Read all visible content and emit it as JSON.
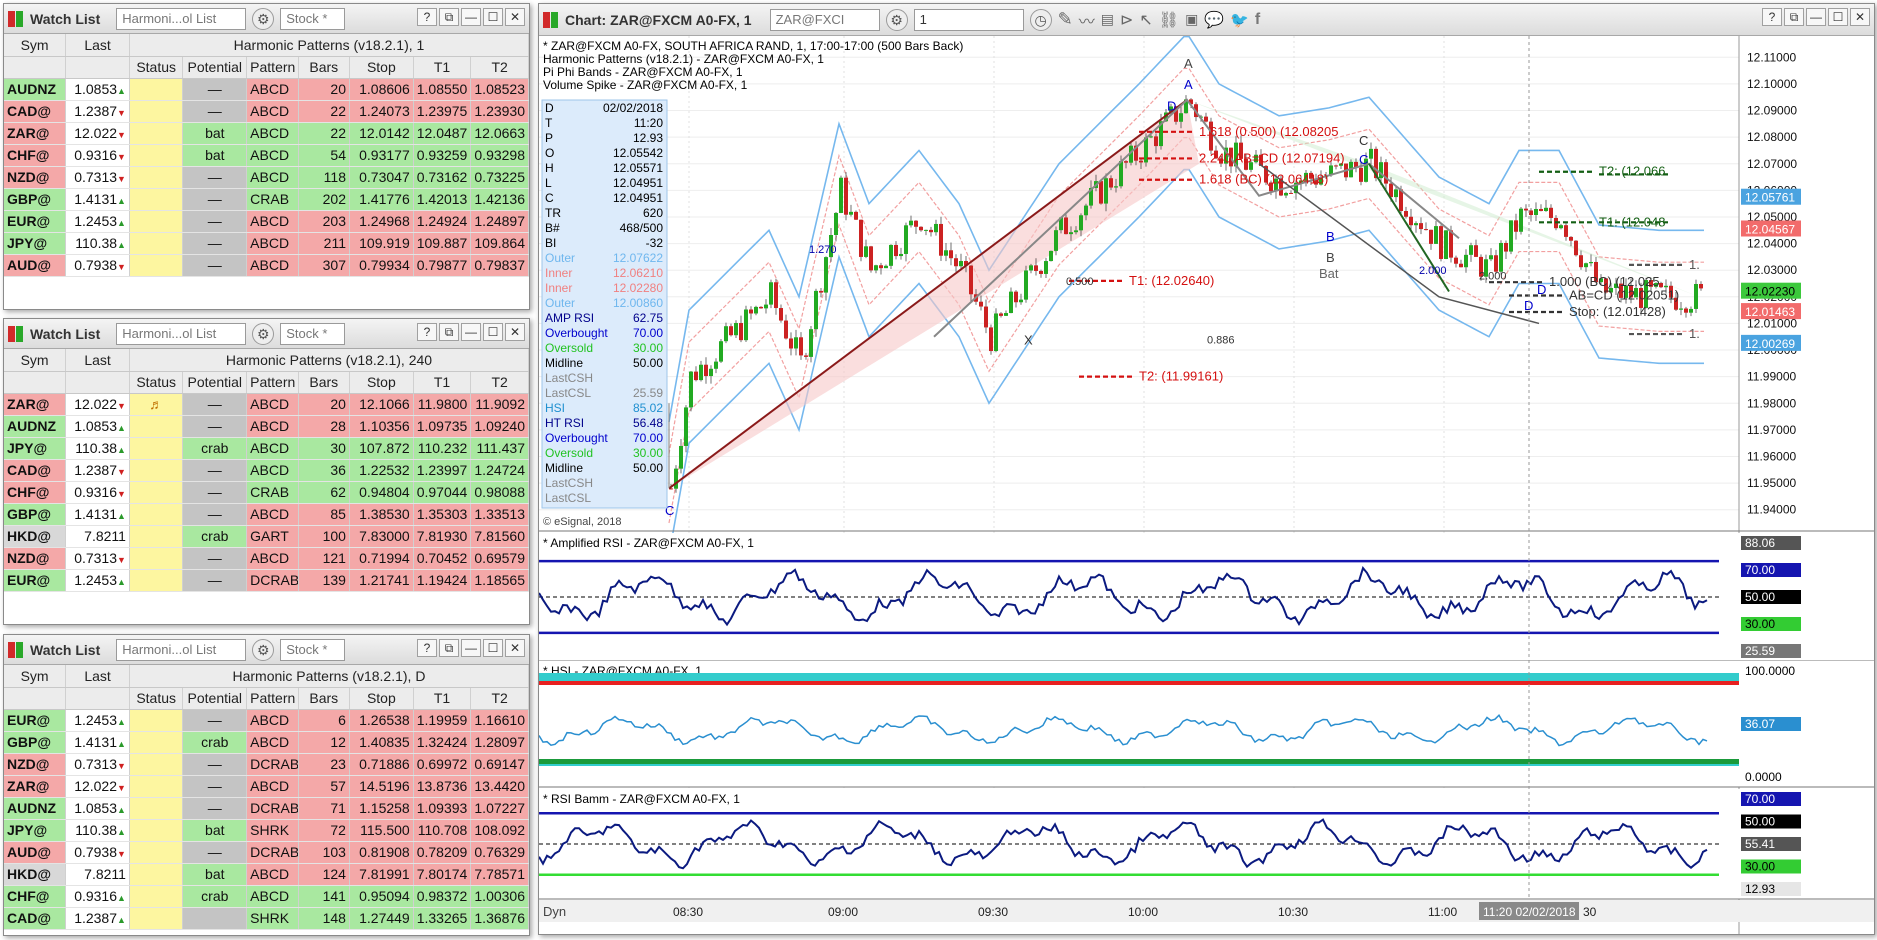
{
  "watchlists": [
    {
      "title": "Watch List",
      "layout_combo": "Harmoni...ol List",
      "symbol_input": "Stock *",
      "study_header": "Harmonic Patterns (v18.2.1), 1",
      "headers": {
        "sym": "Sym",
        "last": "Last",
        "status": "Status",
        "potential": "Potential",
        "pattern": "Pattern",
        "bars": "Bars",
        "stop": "Stop",
        "t1": "T1",
        "t2": "T2"
      },
      "rows": [
        {
          "sym": "AUDNZ",
          "last": "1.0853",
          "dir": "up",
          "status": "",
          "potential": "—",
          "pattern": "ABCD",
          "bars": "20",
          "stop": "1.08606",
          "t1": "1.08550",
          "t2": "1.08523",
          "type": "bear"
        },
        {
          "sym": "CAD@",
          "last": "1.2387",
          "dir": "dn",
          "status": "",
          "potential": "—",
          "pattern": "ABCD",
          "bars": "22",
          "stop": "1.24073",
          "t1": "1.23975",
          "t2": "1.23930",
          "type": "bear"
        },
        {
          "sym": "ZAR@",
          "last": "12.022",
          "dir": "dn",
          "status": "",
          "potential": "bat",
          "pattern": "ABCD",
          "bars": "22",
          "stop": "12.0142",
          "t1": "12.0487",
          "t2": "12.0663",
          "type": "bull"
        },
        {
          "sym": "CHF@",
          "last": "0.9316",
          "dir": "dn",
          "status": "",
          "potential": "bat",
          "pattern": "ABCD",
          "bars": "54",
          "stop": "0.93177",
          "t1": "0.93259",
          "t2": "0.93298",
          "type": "bull"
        },
        {
          "sym": "NZD@",
          "last": "0.7313",
          "dir": "dn",
          "status": "",
          "potential": "—",
          "pattern": "ABCD",
          "bars": "118",
          "stop": "0.73047",
          "t1": "0.73162",
          "t2": "0.73225",
          "type": "bull"
        },
        {
          "sym": "GBP@",
          "last": "1.4131",
          "dir": "up",
          "status": "",
          "potential": "—",
          "pattern": "CRAB",
          "bars": "202",
          "stop": "1.41776",
          "t1": "1.42013",
          "t2": "1.42136",
          "type": "bull"
        },
        {
          "sym": "EUR@",
          "last": "1.2453",
          "dir": "up",
          "status": "",
          "potential": "—",
          "pattern": "ABCD",
          "bars": "203",
          "stop": "1.24968",
          "t1": "1.24924",
          "t2": "1.24897",
          "type": "bear"
        },
        {
          "sym": "JPY@",
          "last": "110.38",
          "dir": "up",
          "status": "",
          "potential": "—",
          "pattern": "ABCD",
          "bars": "211",
          "stop": "109.919",
          "t1": "109.887",
          "t2": "109.864",
          "type": "bear"
        },
        {
          "sym": "AUD@",
          "last": "0.7938",
          "dir": "dn",
          "status": "",
          "potential": "—",
          "pattern": "ABCD",
          "bars": "307",
          "stop": "0.79934",
          "t1": "0.79877",
          "t2": "0.79837",
          "type": "bear"
        }
      ]
    },
    {
      "title": "Watch List",
      "layout_combo": "Harmoni...ol List",
      "symbol_input": "Stock *",
      "study_header": "Harmonic Patterns (v18.2.1), 240",
      "headers": {
        "sym": "Sym",
        "last": "Last",
        "status": "Status",
        "potential": "Potential",
        "pattern": "Pattern",
        "bars": "Bars",
        "stop": "Stop",
        "t1": "T1",
        "t2": "T2"
      },
      "rows": [
        {
          "sym": "ZAR@",
          "last": "12.022",
          "dir": "dn",
          "status": "♬",
          "potential": "—",
          "pattern": "ABCD",
          "bars": "20",
          "stop": "12.1066",
          "t1": "11.9800",
          "t2": "11.9092",
          "type": "bear"
        },
        {
          "sym": "AUDNZ",
          "last": "1.0853",
          "dir": "up",
          "status": "",
          "potential": "—",
          "pattern": "ABCD",
          "bars": "28",
          "stop": "1.10356",
          "t1": "1.09735",
          "t2": "1.09240",
          "type": "bear"
        },
        {
          "sym": "JPY@",
          "last": "110.38",
          "dir": "up",
          "status": "",
          "potential": "crab",
          "pattern": "ABCD",
          "bars": "30",
          "stop": "107.872",
          "t1": "110.232",
          "t2": "111.437",
          "type": "bull"
        },
        {
          "sym": "CAD@",
          "last": "1.2387",
          "dir": "dn",
          "status": "",
          "potential": "—",
          "pattern": "ABCD",
          "bars": "36",
          "stop": "1.22532",
          "t1": "1.23997",
          "t2": "1.24724",
          "type": "bull"
        },
        {
          "sym": "CHF@",
          "last": "0.9316",
          "dir": "dn",
          "status": "",
          "potential": "—",
          "pattern": "CRAB",
          "bars": "62",
          "stop": "0.94804",
          "t1": "0.97044",
          "t2": "0.98088",
          "type": "bull"
        },
        {
          "sym": "GBP@",
          "last": "1.4131",
          "dir": "up",
          "status": "",
          "potential": "—",
          "pattern": "ABCD",
          "bars": "85",
          "stop": "1.38530",
          "t1": "1.35303",
          "t2": "1.33513",
          "type": "bear"
        },
        {
          "sym": "HKD@",
          "last": "7.8211",
          "dir": "",
          "status": "",
          "potential": "crab",
          "pattern": "GART",
          "bars": "100",
          "stop": "7.83000",
          "t1": "7.81930",
          "t2": "7.81560",
          "type": "bear"
        },
        {
          "sym": "NZD@",
          "last": "0.7313",
          "dir": "dn",
          "status": "",
          "potential": "—",
          "pattern": "ABCD",
          "bars": "121",
          "stop": "0.71994",
          "t1": "0.70452",
          "t2": "0.69579",
          "type": "bear"
        },
        {
          "sym": "EUR@",
          "last": "1.2453",
          "dir": "up",
          "status": "",
          "potential": "—",
          "pattern": "DCRAB",
          "bars": "139",
          "stop": "1.21741",
          "t1": "1.19424",
          "t2": "1.18565",
          "type": "bear"
        }
      ]
    },
    {
      "title": "Watch List",
      "layout_combo": "Harmoni...ol List",
      "symbol_input": "Stock *",
      "study_header": "Harmonic Patterns (v18.2.1), D",
      "headers": {
        "sym": "Sym",
        "last": "Last",
        "status": "Status",
        "potential": "Potential",
        "pattern": "Pattern",
        "bars": "Bars",
        "stop": "Stop",
        "t1": "T1",
        "t2": "T2"
      },
      "rows": [
        {
          "sym": "EUR@",
          "last": "1.2453",
          "dir": "up",
          "status": "",
          "potential": "—",
          "pattern": "ABCD",
          "bars": "6",
          "stop": "1.26538",
          "t1": "1.19959",
          "t2": "1.16610",
          "type": "bear"
        },
        {
          "sym": "GBP@",
          "last": "1.4131",
          "dir": "up",
          "status": "",
          "potential": "crab",
          "pattern": "ABCD",
          "bars": "12",
          "stop": "1.40835",
          "t1": "1.32424",
          "t2": "1.28097",
          "type": "bear"
        },
        {
          "sym": "NZD@",
          "last": "0.7313",
          "dir": "dn",
          "status": "",
          "potential": "—",
          "pattern": "DCRAB",
          "bars": "23",
          "stop": "0.71886",
          "t1": "0.69972",
          "t2": "0.69147",
          "type": "bear"
        },
        {
          "sym": "ZAR@",
          "last": "12.022",
          "dir": "dn",
          "status": "",
          "potential": "—",
          "pattern": "ABCD",
          "bars": "57",
          "stop": "14.5196",
          "t1": "13.8736",
          "t2": "13.4420",
          "type": "bear"
        },
        {
          "sym": "AUDNZ",
          "last": "1.0853",
          "dir": "up",
          "status": "",
          "potential": "—",
          "pattern": "DCRAB",
          "bars": "71",
          "stop": "1.15258",
          "t1": "1.09393",
          "t2": "1.07227",
          "type": "bear"
        },
        {
          "sym": "JPY@",
          "last": "110.38",
          "dir": "up",
          "status": "",
          "potential": "bat",
          "pattern": "SHRK",
          "bars": "72",
          "stop": "115.500",
          "t1": "110.708",
          "t2": "108.092",
          "type": "bear"
        },
        {
          "sym": "AUD@",
          "last": "0.7938",
          "dir": "dn",
          "status": "",
          "potential": "—",
          "pattern": "DCRAB",
          "bars": "103",
          "stop": "0.81908",
          "t1": "0.78209",
          "t2": "0.76329",
          "type": "bear"
        },
        {
          "sym": "HKD@",
          "last": "7.8211",
          "dir": "",
          "status": "",
          "potential": "bat",
          "pattern": "ABCD",
          "bars": "124",
          "stop": "7.81991",
          "t1": "7.80174",
          "t2": "7.78571",
          "type": "bear"
        },
        {
          "sym": "CHF@",
          "last": "0.9316",
          "dir": "up",
          "status": "",
          "potential": "crab",
          "pattern": "ABCD",
          "bars": "141",
          "stop": "0.95094",
          "t1": "0.98372",
          "t2": "1.00306",
          "type": "bull"
        },
        {
          "sym": "CAD@",
          "last": "1.2387",
          "dir": "up",
          "status": "",
          "potential": "",
          "pattern": "SHRK",
          "bars": "148",
          "stop": "1.27449",
          "t1": "1.33265",
          "t2": "1.36876",
          "type": "bull"
        }
      ]
    }
  ],
  "chart": {
    "title": "Chart: ZAR@FXCM A0-FX, 1",
    "symbol_combo": "ZAR@FXCI",
    "interval_combo": "1",
    "legend": [
      "* ZAR@FXCM A0-FX, SOUTH AFRICA RAND, 1, 17:00-17:00 (500 Bars Back)",
      "Harmonic Patterns (v18.2.1) - ZAR@FXCM A0-FX, 1",
      "Pi Phi Bands - ZAR@FXCM A0-FX, 1",
      "Volume Spike - ZAR@FXCM A0-FX, 1"
    ],
    "copyright": "© eSignal, 2018",
    "cursor_window": [
      {
        "k": "D",
        "v": "02/02/2018",
        "c": "#000"
      },
      {
        "k": "T",
        "v": "11:20",
        "c": "#000"
      },
      {
        "k": "P",
        "v": "12.93",
        "c": "#000"
      },
      {
        "k": "O",
        "v": "12.05542",
        "c": "#000"
      },
      {
        "k": "H",
        "v": "12.05571",
        "c": "#000"
      },
      {
        "k": "L",
        "v": "12.04951",
        "c": "#000"
      },
      {
        "k": "C",
        "v": "12.04951",
        "c": "#000"
      },
      {
        "k": "TR",
        "v": "620",
        "c": "#000"
      },
      {
        "k": "B#",
        "v": "468/500",
        "c": "#000"
      },
      {
        "k": "BI",
        "v": "-32",
        "c": "#000"
      },
      {
        "k": "Outer",
        "v": "12.07622",
        "c": "#6fb7ee"
      },
      {
        "k": "Inner",
        "v": "12.06210",
        "c": "#f08080"
      },
      {
        "k": "Inner",
        "v": "12.02280",
        "c": "#f08080"
      },
      {
        "k": "Outer",
        "v": "12.00860",
        "c": "#6fb7ee"
      },
      {
        "k": "AMP RSI",
        "v": "62.75",
        "c": "#00008b"
      },
      {
        "k": "Overbought",
        "v": "70.00",
        "c": "#0000cd"
      },
      {
        "k": "Oversold",
        "v": "30.00",
        "c": "#22c322"
      },
      {
        "k": "Midline",
        "v": "50.00",
        "c": "#000"
      },
      {
        "k": "LastCSH",
        "v": "",
        "c": "#888"
      },
      {
        "k": "LastCSL",
        "v": "25.59",
        "c": "#888"
      },
      {
        "k": "HSI",
        "v": "85.02",
        "c": "#2090d0"
      },
      {
        "k": "HT RSI",
        "v": "56.48",
        "c": "#00008b"
      },
      {
        "k": "Overbought",
        "v": "70.00",
        "c": "#0000cd"
      },
      {
        "k": "Oversold",
        "v": "30.00",
        "c": "#22c322"
      },
      {
        "k": "Midline",
        "v": "50.00",
        "c": "#000"
      },
      {
        "k": "LastCSH",
        "v": "",
        "c": "#888"
      },
      {
        "k": "LastCSL",
        "v": "",
        "c": "#888"
      }
    ],
    "price_axis": [
      "12.11000",
      "12.10000",
      "12.09000",
      "12.08000",
      "12.07000",
      "12.06000",
      "12.05000",
      "12.04000",
      "12.03000",
      "12.02000",
      "12.01000",
      "12.00000",
      "11.99000",
      "11.98000",
      "11.97000",
      "11.96000",
      "11.95000",
      "11.94000"
    ],
    "price_tags": [
      {
        "text": "12.05761",
        "bg": "#4aa3e0",
        "fg": "#fff",
        "price": 12.05761
      },
      {
        "text": "12.04567",
        "bg": "#f26b6b",
        "fg": "#fff",
        "price": 12.04567
      },
      {
        "text": "12.02230",
        "bg": "#3cc93c",
        "fg": "#000",
        "price": 12.0223
      },
      {
        "text": "12.01463",
        "bg": "#f26b6b",
        "fg": "#fff",
        "price": 12.01463
      },
      {
        "text": "12.00269",
        "bg": "#4aa3e0",
        "fg": "#fff",
        "price": 12.00269
      }
    ],
    "time_axis": [
      "08:30",
      "09:00",
      "09:30",
      "10:00",
      "10:30",
      "11:00"
    ],
    "time_highlight": "11:20 02/02/2018",
    "time_tail": "30",
    "pattern_labels": {
      "a1": "A",
      "a2": "A",
      "b1": "B",
      "b2": "B",
      "bat": "Bat",
      "c1": "C",
      "c2": "C",
      "d1": "D",
      "d2": "D",
      "x": "X",
      "d3": "D"
    },
    "fib_labels": [
      "1.618 (0.500) (12.08205",
      "2.240 AB=CD (12.07194)",
      "1.618 (BC) (12.06418)",
      "T1: (12.02640)",
      "T2: (11.99161)",
      "0.500",
      "0.886",
      "1.270",
      "2.000",
      "2.000",
      "1.000 (BC) (12.025",
      "AB=CD (12.02051)",
      "Stop: (12.01428)",
      "T2: (12.066",
      "T1: (12.048",
      "1.",
      "1."
    ],
    "subpanes": [
      {
        "label": "* Amplified RSI - ZAR@FXCM A0-FX, 1",
        "tags": [
          {
            "t": "88.06",
            "bg": "#555",
            "fg": "#fff"
          },
          {
            "t": "70.00",
            "bg": "#1515b0",
            "fg": "#fff"
          },
          {
            "t": "50.00",
            "bg": "#000",
            "fg": "#fff"
          },
          {
            "t": "30.00",
            "bg": "#33cc33",
            "fg": "#000"
          },
          {
            "t": "25.59",
            "bg": "#777",
            "fg": "#fff"
          }
        ]
      },
      {
        "label": "* HSI - ZAR@FXCM A0-FX, 1",
        "tags": [
          {
            "t": "100.0000",
            "bg": "#fff",
            "fg": "#000"
          },
          {
            "t": "36.07",
            "bg": "#2a8fd0",
            "fg": "#fff"
          },
          {
            "t": "0.0000",
            "bg": "#fff",
            "fg": "#000"
          }
        ]
      },
      {
        "label": "* RSI Bamm - ZAR@FXCM A0-FX, 1",
        "tags": [
          {
            "t": "70.00",
            "bg": "#1515b0",
            "fg": "#fff"
          },
          {
            "t": "50.00",
            "bg": "#000",
            "fg": "#fff"
          },
          {
            "t": "55.41",
            "bg": "#555",
            "fg": "#fff"
          },
          {
            "t": "30.00",
            "bg": "#33cc33",
            "fg": "#000"
          },
          {
            "t": "12.93",
            "bg": "#e6e6e6",
            "fg": "#000"
          }
        ]
      }
    ],
    "status_dyn": "Dyn"
  }
}
